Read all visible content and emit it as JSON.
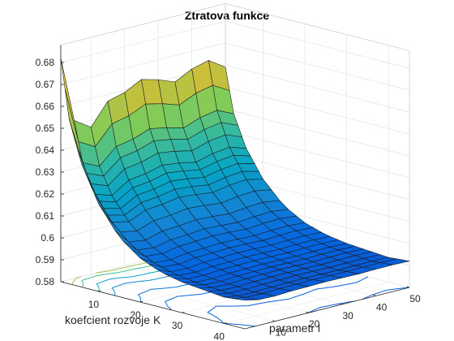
{
  "chart_data": {
    "type": "surface",
    "title": "Ztratova funkce",
    "xlabel": "koefcient rozvoje K",
    "ylabel": "parametr l",
    "zlabel": "",
    "xlim": [
      1,
      45
    ],
    "ylim": [
      1,
      50
    ],
    "zlim": [
      0.58,
      0.685
    ],
    "x_ticks": [
      "10",
      "20",
      "30",
      "40"
    ],
    "y_ticks": [
      "10",
      "20",
      "30",
      "40",
      "50"
    ],
    "z_ticks": [
      "0.58",
      "0.59",
      "0.6",
      "0.61",
      "0.62",
      "0.63",
      "0.64",
      "0.65",
      "0.66",
      "0.67",
      "0.68"
    ],
    "colormap": "parula",
    "grid": true,
    "contour_on_floor": true,
    "edge_l_equals_1": [
      {
        "K": 1,
        "value": 0.682
      },
      {
        "K": 3,
        "value": 0.655
      },
      {
        "K": 6,
        "value": 0.636
      },
      {
        "K": 10,
        "value": 0.62
      },
      {
        "K": 15,
        "value": 0.607
      },
      {
        "K": 20,
        "value": 0.6
      },
      {
        "K": 25,
        "value": 0.596
      },
      {
        "K": 30,
        "value": 0.594
      },
      {
        "K": 35,
        "value": 0.593
      },
      {
        "K": 40,
        "value": 0.592
      },
      {
        "K": 45,
        "value": 0.593
      }
    ],
    "edge_K_equals_1": [
      {
        "l": 1,
        "value": 0.682
      },
      {
        "l": 5,
        "value": 0.652
      },
      {
        "l": 10,
        "value": 0.647
      },
      {
        "l": 15,
        "value": 0.657
      },
      {
        "l": 20,
        "value": 0.659
      },
      {
        "l": 25,
        "value": 0.663
      },
      {
        "l": 30,
        "value": 0.661
      },
      {
        "l": 35,
        "value": 0.658
      },
      {
        "l": 40,
        "value": 0.662
      },
      {
        "l": 45,
        "value": 0.664
      },
      {
        "l": 50,
        "value": 0.659
      }
    ],
    "min_value_approx": 0.589
  }
}
